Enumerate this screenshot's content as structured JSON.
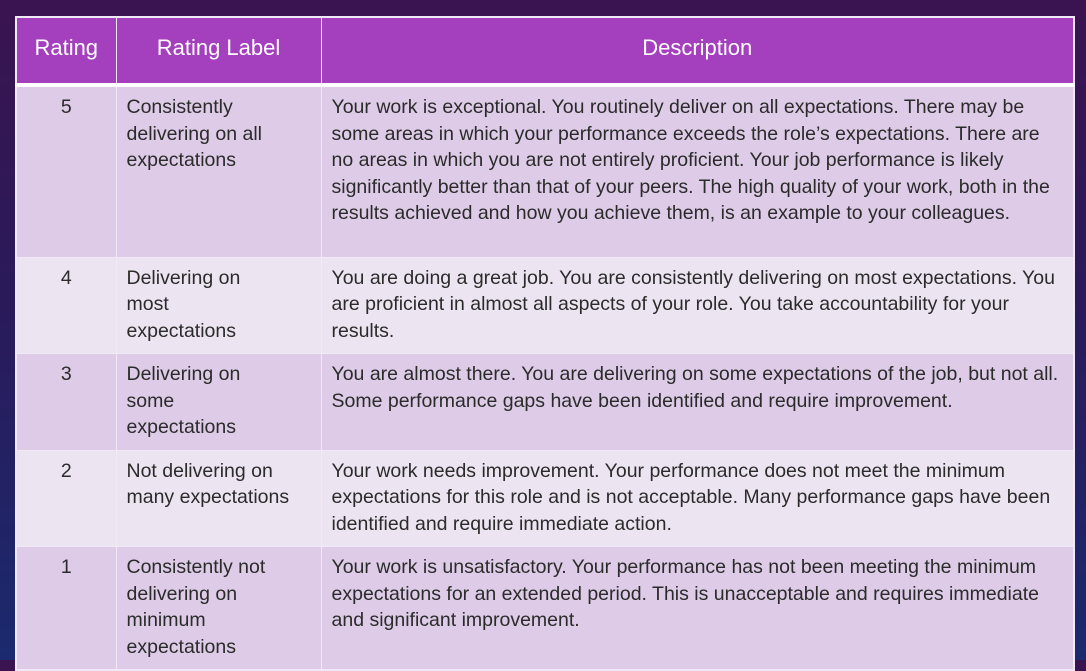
{
  "table": {
    "headers": [
      "Rating",
      "Rating Label",
      "Description"
    ],
    "rows": [
      {
        "rating": "5",
        "label": "Consistently delivering on all expectations",
        "description": "Your work is exceptional. You routinely deliver on all expectations. There may be some areas in which your performance exceeds the role’s expectations. There are no areas in which you are not entirely proficient. Your job performance is likely significantly better than that of your peers. The high quality of your work, both in the results achieved and how you achieve them, is an example to your colleagues."
      },
      {
        "rating": "4",
        "label": "Delivering on most expectations",
        "description": "You are doing a great job.  You are consistently delivering on most expectations.  You are proficient in almost all aspects of your role.  You take accountability for your results."
      },
      {
        "rating": "3",
        "label": "Delivering on some expectations",
        "description": "You are almost there. You are delivering on some expectations of the job, but not all. Some performance gaps have been identified and require improvement."
      },
      {
        "rating": "2",
        "label": "Not delivering on many expectations",
        "description": "Your work needs improvement.  Your performance does not meet the minimum expectations for this role and is not acceptable. Many performance gaps have been identified and require immediate action."
      },
      {
        "rating": "1",
        "label": "Consistently not delivering on minimum expectations",
        "description": "Your work is unsatisfactory.  Your performance has not been meeting the minimum expectations for an extended period.  This is unacceptable and requires immediate and significant improvement."
      }
    ]
  },
  "colors": {
    "header": "#a43fbe",
    "row_odd": "#ddcbe7",
    "row_even": "#ede4f2"
  }
}
